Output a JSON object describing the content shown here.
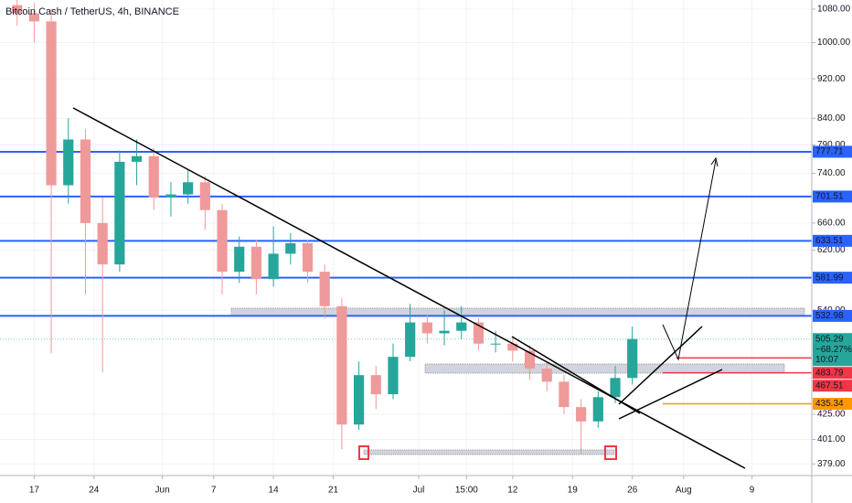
{
  "chart_data": {
    "type": "candlestick",
    "title": "Bitcoin Cash / TetherUS, 4h, BINANCE",
    "log_scale": true,
    "grid": true,
    "up_color": "#26a69a",
    "down_color": "#ef9a9a",
    "ylim": [
      369,
      1103
    ],
    "yticks": [
      {
        "value": 1080,
        "label": "1080.00"
      },
      {
        "value": 1000,
        "label": "1000.00"
      },
      {
        "value": 920,
        "label": "920.00"
      },
      {
        "value": 840,
        "label": "840.00"
      },
      {
        "value": 790,
        "label": "790.00"
      },
      {
        "value": 740,
        "label": "740.00"
      },
      {
        "value": 660,
        "label": "660.00"
      },
      {
        "value": 620,
        "label": "620.00"
      },
      {
        "value": 540,
        "label": "540.00"
      },
      {
        "value": 425,
        "label": "425.00"
      },
      {
        "value": 401,
        "label": "401.00"
      },
      {
        "value": 379,
        "label": "379.00"
      }
    ],
    "xlim": [
      133,
      228
    ],
    "xticks": [
      {
        "value": 137,
        "label": "17"
      },
      {
        "value": 144,
        "label": "24"
      },
      {
        "value": 152,
        "label": "Jun"
      },
      {
        "value": 158,
        "label": "7"
      },
      {
        "value": 165,
        "label": "14"
      },
      {
        "value": 172,
        "label": "21"
      },
      {
        "value": 182,
        "label": "Jul"
      },
      {
        "value": 187.6,
        "label": "15:00"
      },
      {
        "value": 193,
        "label": "12"
      },
      {
        "value": 200,
        "label": "19"
      },
      {
        "value": 207,
        "label": "26"
      },
      {
        "value": 213,
        "label": "Aug"
      },
      {
        "value": 221,
        "label": "9"
      }
    ],
    "x": [
      135,
      137,
      139,
      141,
      143,
      145,
      147,
      149,
      151,
      153,
      155,
      157,
      159,
      161,
      163,
      165,
      167,
      169,
      171,
      173,
      175,
      177,
      179,
      181,
      183,
      185,
      187,
      189,
      191,
      193,
      195,
      197,
      199,
      201,
      203,
      205,
      207
    ],
    "open": [
      1090,
      1070,
      1050,
      720,
      800,
      660,
      600,
      760,
      770,
      700,
      705,
      725,
      680,
      590,
      625,
      580,
      615,
      630,
      590,
      545,
      415,
      465,
      445,
      485,
      525,
      512,
      515,
      525,
      500,
      500,
      492,
      472,
      458,
      432,
      418,
      442,
      462
    ],
    "high": [
      1110,
      1095,
      1080,
      840,
      820,
      700,
      780,
      800,
      785,
      725,
      745,
      735,
      690,
      640,
      635,
      655,
      645,
      635,
      600,
      555,
      480,
      475,
      500,
      548,
      535,
      540,
      545,
      530,
      515,
      508,
      498,
      480,
      465,
      440,
      448,
      475,
      520
    ],
    "low": [
      1040,
      1000,
      489,
      690,
      560,
      468,
      590,
      720,
      680,
      670,
      690,
      650,
      560,
      575,
      560,
      570,
      600,
      575,
      530,
      392,
      410,
      430,
      440,
      480,
      500,
      498,
      505,
      492,
      490,
      480,
      460,
      448,
      425,
      388,
      412,
      436,
      455
    ],
    "close": [
      1070,
      1050,
      720,
      800,
      660,
      600,
      760,
      770,
      700,
      705,
      725,
      680,
      590,
      625,
      580,
      615,
      630,
      590,
      545,
      415,
      465,
      445,
      485,
      525,
      512,
      515,
      525,
      500,
      500,
      492,
      472,
      458,
      432,
      418,
      442,
      462,
      505.29
    ],
    "price_lines": [
      {
        "value": 777.71,
        "label": "777.71",
        "color": "#2962ff"
      },
      {
        "value": 701.51,
        "label": "701.51",
        "color": "#2962ff"
      },
      {
        "value": 633.51,
        "label": "633.51",
        "color": "#2962ff"
      },
      {
        "value": 581.99,
        "label": "581.99",
        "color": "#2962ff"
      },
      {
        "value": 532.98,
        "label": "532.98",
        "color": "#2962ff"
      },
      {
        "value": 505.29,
        "label": "505.29",
        "color": "#26a69a"
      },
      {
        "value": 483.79,
        "label": "483.79",
        "color": "#f23645"
      },
      {
        "value": 467.51,
        "label": "467.51",
        "color": "#f23645"
      },
      {
        "value": 435.34,
        "label": "435.34",
        "color": "#ff9800"
      }
    ],
    "change_label": "−68.27%",
    "countdown": "10:07"
  }
}
